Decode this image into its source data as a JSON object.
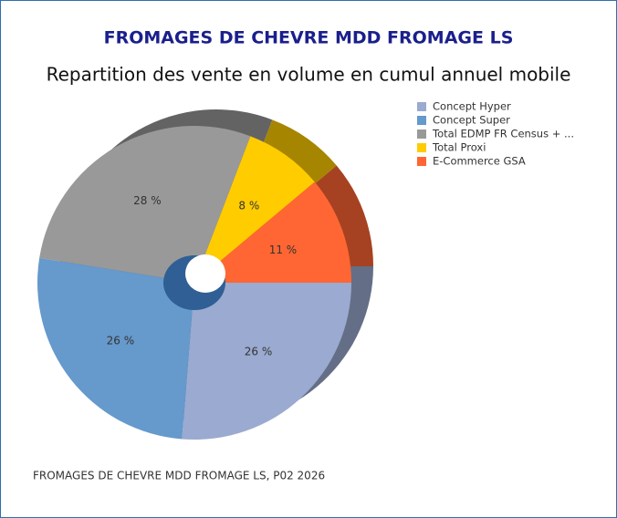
{
  "chart_data": {
    "type": "pie",
    "title": "FROMAGES DE CHEVRE MDD FROMAGE LS",
    "subtitle": "Repartition des vente en volume en cumul annuel mobile",
    "footnote": "FROMAGES DE CHEVRE MDD FROMAGE LS, P02 2026",
    "categories": [
      "Concept Hyper",
      "Concept Super",
      "Total EDMP FR Census + ...",
      "Total Proxi",
      "E-Commerce GSA"
    ],
    "values": [
      26,
      26,
      28,
      8,
      11
    ],
    "value_labels": [
      "26 %",
      "26 %",
      "28 %",
      "8 %",
      "11 %"
    ],
    "colors": [
      "#9aaad0",
      "#6699cc",
      "#999999",
      "#ffcc00",
      "#ff6633"
    ],
    "legend": "right"
  }
}
